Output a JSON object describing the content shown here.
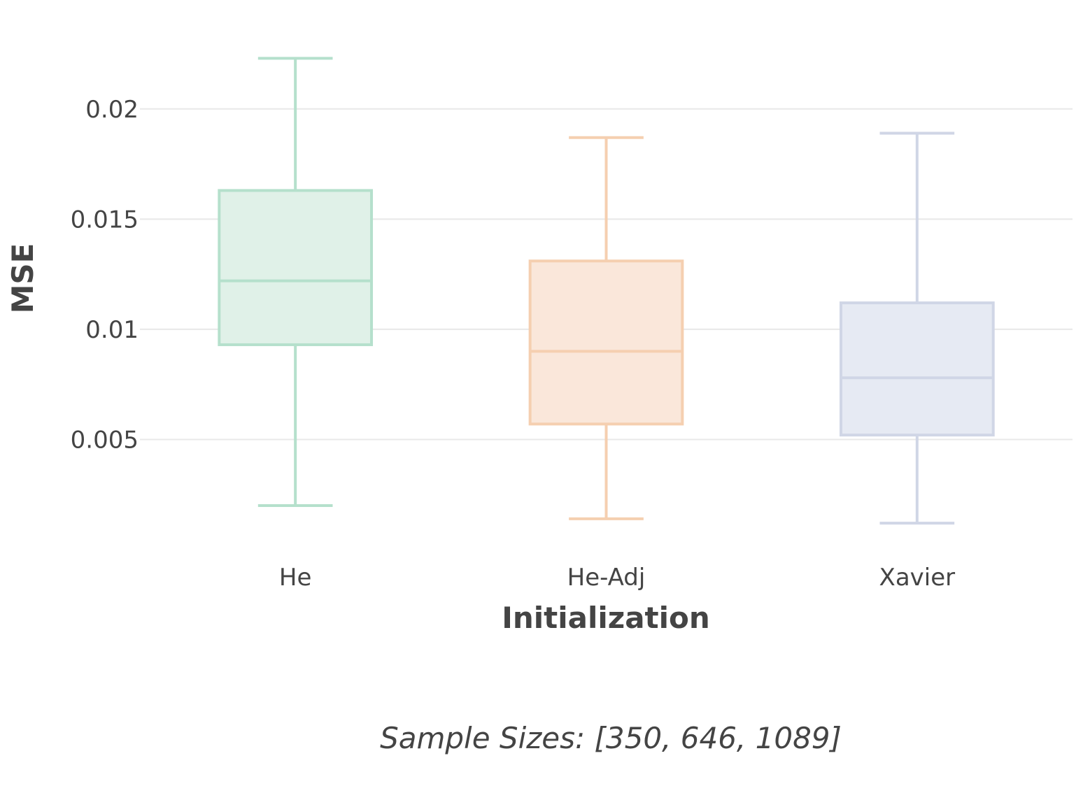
{
  "chart_data": {
    "type": "box",
    "title": "",
    "xlabel": "Initialization",
    "ylabel": "MSE",
    "categories": [
      "He",
      "He-Adj",
      "Xavier"
    ],
    "series": [
      {
        "name": "He",
        "color": "#b5e0cc",
        "fill": "#e0f1e8",
        "min": 0.002,
        "q1": 0.0093,
        "median": 0.0122,
        "q3": 0.0163,
        "max": 0.0223
      },
      {
        "name": "He-Adj",
        "color": "#f5cfb0",
        "fill": "#fae7da",
        "min": 0.0014,
        "q1": 0.0057,
        "median": 0.009,
        "q3": 0.0131,
        "max": 0.0187
      },
      {
        "name": "Xavier",
        "color": "#d0d6e6",
        "fill": "#e6eaf3",
        "min": 0.0012,
        "q1": 0.0052,
        "median": 0.0078,
        "q3": 0.0112,
        "max": 0.0189
      }
    ],
    "yticks": [
      0.005,
      0.01,
      0.015,
      0.02
    ],
    "ytick_labels": [
      "0.005",
      "0.01",
      "0.015",
      "0.02"
    ],
    "ylim": [
      0.00019,
      0.02431
    ],
    "grid": true,
    "legend": false,
    "annotation": "Sample Sizes: [350, 646, 1089]"
  }
}
